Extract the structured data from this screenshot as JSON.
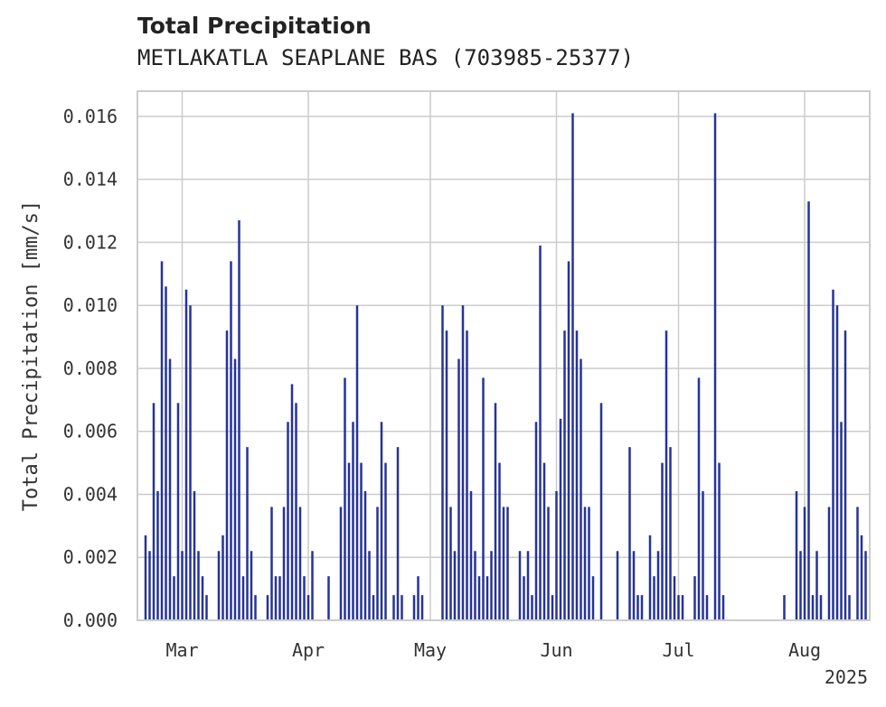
{
  "header": {
    "title": "Total Precipitation",
    "subtitle": "METLAKATLA SEAPLANE BAS (703985-25377)"
  },
  "chart_data": {
    "type": "bar",
    "title": "Total Precipitation",
    "subtitle": "METLAKATLA SEAPLANE BAS (703985-25377)",
    "xlabel": "",
    "ylabel": "Total Precipitation [mm/s]",
    "year_label": "2025",
    "x_ticks": [
      {
        "label": "Mar",
        "date": "2025-03-01"
      },
      {
        "label": "Apr",
        "date": "2025-04-01"
      },
      {
        "label": "May",
        "date": "2025-05-01"
      },
      {
        "label": "Jun",
        "date": "2025-06-01"
      },
      {
        "label": "Jul",
        "date": "2025-07-01"
      },
      {
        "label": "Aug",
        "date": "2025-08-01"
      }
    ],
    "y_ticks": [
      "0.000",
      "0.002",
      "0.004",
      "0.006",
      "0.008",
      "0.010",
      "0.012",
      "0.014",
      "0.016"
    ],
    "xlim": [
      "2025-02-18",
      "2025-08-17"
    ],
    "ylim": [
      0,
      0.0168
    ],
    "grid": true,
    "bar_color": "#26339a",
    "series": [
      {
        "values": [
          [
            "2025-02-20",
            0.0027
          ],
          [
            "2025-02-21",
            0.0022
          ],
          [
            "2025-02-22",
            0.0069
          ],
          [
            "2025-02-23",
            0.0041
          ],
          [
            "2025-02-24",
            0.0114
          ],
          [
            "2025-02-25",
            0.0106
          ],
          [
            "2025-02-26",
            0.0083
          ],
          [
            "2025-02-27",
            0.0014
          ],
          [
            "2025-02-28",
            0.0069
          ],
          [
            "2025-03-01",
            0.0022
          ],
          [
            "2025-03-02",
            0.0105
          ],
          [
            "2025-03-03",
            0.01
          ],
          [
            "2025-03-04",
            0.0041
          ],
          [
            "2025-03-05",
            0.0022
          ],
          [
            "2025-03-06",
            0.0014
          ],
          [
            "2025-03-07",
            0.0008
          ],
          [
            "2025-03-10",
            0.0022
          ],
          [
            "2025-03-11",
            0.0027
          ],
          [
            "2025-03-12",
            0.0092
          ],
          [
            "2025-03-13",
            0.0114
          ],
          [
            "2025-03-14",
            0.0083
          ],
          [
            "2025-03-15",
            0.0127
          ],
          [
            "2025-03-16",
            0.0014
          ],
          [
            "2025-03-17",
            0.0055
          ],
          [
            "2025-03-18",
            0.0022
          ],
          [
            "2025-03-19",
            0.0008
          ],
          [
            "2025-03-22",
            0.0008
          ],
          [
            "2025-03-23",
            0.0036
          ],
          [
            "2025-03-24",
            0.0014
          ],
          [
            "2025-03-25",
            0.0014
          ],
          [
            "2025-03-26",
            0.0036
          ],
          [
            "2025-03-27",
            0.0063
          ],
          [
            "2025-03-28",
            0.0075
          ],
          [
            "2025-03-29",
            0.0069
          ],
          [
            "2025-03-30",
            0.0036
          ],
          [
            "2025-03-31",
            0.0014
          ],
          [
            "2025-04-01",
            0.0008
          ],
          [
            "2025-04-02",
            0.0022
          ],
          [
            "2025-04-06",
            0.0014
          ],
          [
            "2025-04-09",
            0.0036
          ],
          [
            "2025-04-10",
            0.0077
          ],
          [
            "2025-04-11",
            0.005
          ],
          [
            "2025-04-12",
            0.0063
          ],
          [
            "2025-04-13",
            0.01
          ],
          [
            "2025-04-14",
            0.005
          ],
          [
            "2025-04-15",
            0.0041
          ],
          [
            "2025-04-16",
            0.0022
          ],
          [
            "2025-04-17",
            0.0008
          ],
          [
            "2025-04-18",
            0.0036
          ],
          [
            "2025-04-19",
            0.0063
          ],
          [
            "2025-04-20",
            0.005
          ],
          [
            "2025-04-22",
            0.0008
          ],
          [
            "2025-04-23",
            0.0055
          ],
          [
            "2025-04-24",
            0.0008
          ],
          [
            "2025-04-27",
            0.0008
          ],
          [
            "2025-04-28",
            0.0014
          ],
          [
            "2025-04-29",
            0.0008
          ],
          [
            "2025-05-04",
            0.01
          ],
          [
            "2025-05-05",
            0.0092
          ],
          [
            "2025-05-06",
            0.0036
          ],
          [
            "2025-05-07",
            0.0022
          ],
          [
            "2025-05-08",
            0.0083
          ],
          [
            "2025-05-09",
            0.01
          ],
          [
            "2025-05-10",
            0.0092
          ],
          [
            "2025-05-11",
            0.0041
          ],
          [
            "2025-05-12",
            0.0022
          ],
          [
            "2025-05-13",
            0.0014
          ],
          [
            "2025-05-14",
            0.0077
          ],
          [
            "2025-05-15",
            0.0014
          ],
          [
            "2025-05-16",
            0.0022
          ],
          [
            "2025-05-17",
            0.0069
          ],
          [
            "2025-05-18",
            0.005
          ],
          [
            "2025-05-19",
            0.0036
          ],
          [
            "2025-05-20",
            0.0036
          ],
          [
            "2025-05-23",
            0.0022
          ],
          [
            "2025-05-24",
            0.0014
          ],
          [
            "2025-05-25",
            0.0022
          ],
          [
            "2025-05-26",
            0.0008
          ],
          [
            "2025-05-27",
            0.0063
          ],
          [
            "2025-05-28",
            0.0119
          ],
          [
            "2025-05-29",
            0.005
          ],
          [
            "2025-05-30",
            0.0036
          ],
          [
            "2025-05-31",
            0.0008
          ],
          [
            "2025-06-01",
            0.0041
          ],
          [
            "2025-06-02",
            0.0064
          ],
          [
            "2025-06-03",
            0.0092
          ],
          [
            "2025-06-04",
            0.0114
          ],
          [
            "2025-06-05",
            0.0161
          ],
          [
            "2025-06-06",
            0.0092
          ],
          [
            "2025-06-07",
            0.0083
          ],
          [
            "2025-06-08",
            0.0036
          ],
          [
            "2025-06-09",
            0.0036
          ],
          [
            "2025-06-10",
            0.0014
          ],
          [
            "2025-06-12",
            0.0069
          ],
          [
            "2025-06-16",
            0.0022
          ],
          [
            "2025-06-19",
            0.0055
          ],
          [
            "2025-06-20",
            0.0022
          ],
          [
            "2025-06-21",
            0.0008
          ],
          [
            "2025-06-22",
            0.0008
          ],
          [
            "2025-06-24",
            0.0027
          ],
          [
            "2025-06-25",
            0.0014
          ],
          [
            "2025-06-26",
            0.0022
          ],
          [
            "2025-06-27",
            0.005
          ],
          [
            "2025-06-28",
            0.0092
          ],
          [
            "2025-06-29",
            0.0055
          ],
          [
            "2025-06-30",
            0.0014
          ],
          [
            "2025-07-01",
            0.0008
          ],
          [
            "2025-07-02",
            0.0008
          ],
          [
            "2025-07-05",
            0.0014
          ],
          [
            "2025-07-06",
            0.0077
          ],
          [
            "2025-07-07",
            0.0041
          ],
          [
            "2025-07-08",
            0.0008
          ],
          [
            "2025-07-10",
            0.0161
          ],
          [
            "2025-07-11",
            0.005
          ],
          [
            "2025-07-12",
            0.0008
          ],
          [
            "2025-07-27",
            0.0008
          ],
          [
            "2025-07-30",
            0.0041
          ],
          [
            "2025-07-31",
            0.0022
          ],
          [
            "2025-08-01",
            0.0036
          ],
          [
            "2025-08-02",
            0.0133
          ],
          [
            "2025-08-03",
            0.0008
          ],
          [
            "2025-08-04",
            0.0022
          ],
          [
            "2025-08-05",
            0.0008
          ],
          [
            "2025-08-07",
            0.0036
          ],
          [
            "2025-08-08",
            0.0105
          ],
          [
            "2025-08-09",
            0.01
          ],
          [
            "2025-08-10",
            0.0063
          ],
          [
            "2025-08-11",
            0.0092
          ],
          [
            "2025-08-12",
            0.0008
          ],
          [
            "2025-08-14",
            0.0036
          ],
          [
            "2025-08-15",
            0.0027
          ],
          [
            "2025-08-16",
            0.0022
          ]
        ]
      }
    ]
  }
}
